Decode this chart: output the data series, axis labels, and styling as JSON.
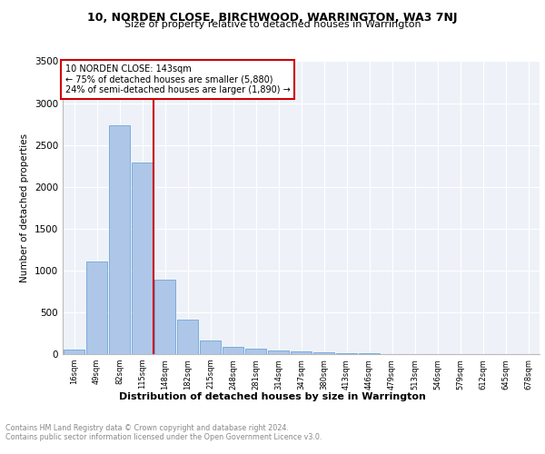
{
  "title1": "10, NORDEN CLOSE, BIRCHWOOD, WARRINGTON, WA3 7NJ",
  "title2": "Size of property relative to detached houses in Warrington",
  "xlabel": "Distribution of detached houses by size in Warrington",
  "ylabel": "Number of detached properties",
  "bar_labels": [
    "16sqm",
    "49sqm",
    "82sqm",
    "115sqm",
    "148sqm",
    "182sqm",
    "215sqm",
    "248sqm",
    "281sqm",
    "314sqm",
    "347sqm",
    "380sqm",
    "413sqm",
    "446sqm",
    "479sqm",
    "513sqm",
    "546sqm",
    "579sqm",
    "612sqm",
    "645sqm",
    "678sqm"
  ],
  "bar_values": [
    50,
    1110,
    2730,
    2290,
    890,
    410,
    165,
    90,
    60,
    40,
    35,
    20,
    10,
    8,
    5,
    3,
    2,
    2,
    1,
    1,
    1
  ],
  "bar_color": "#aec6e8",
  "bar_edgecolor": "#5b9bd5",
  "annotation_line1": "10 NORDEN CLOSE: 143sqm",
  "annotation_line2": "← 75% of detached houses are smaller (5,880)",
  "annotation_line3": "24% of semi-detached houses are larger (1,890) →",
  "vline_color": "#cc0000",
  "annotation_box_edgecolor": "#cc0000",
  "footer1": "Contains HM Land Registry data © Crown copyright and database right 2024.",
  "footer2": "Contains public sector information licensed under the Open Government Licence v3.0.",
  "ylim": [
    0,
    3500
  ],
  "plot_bg": "#eef2f8",
  "vline_index": 3.5
}
